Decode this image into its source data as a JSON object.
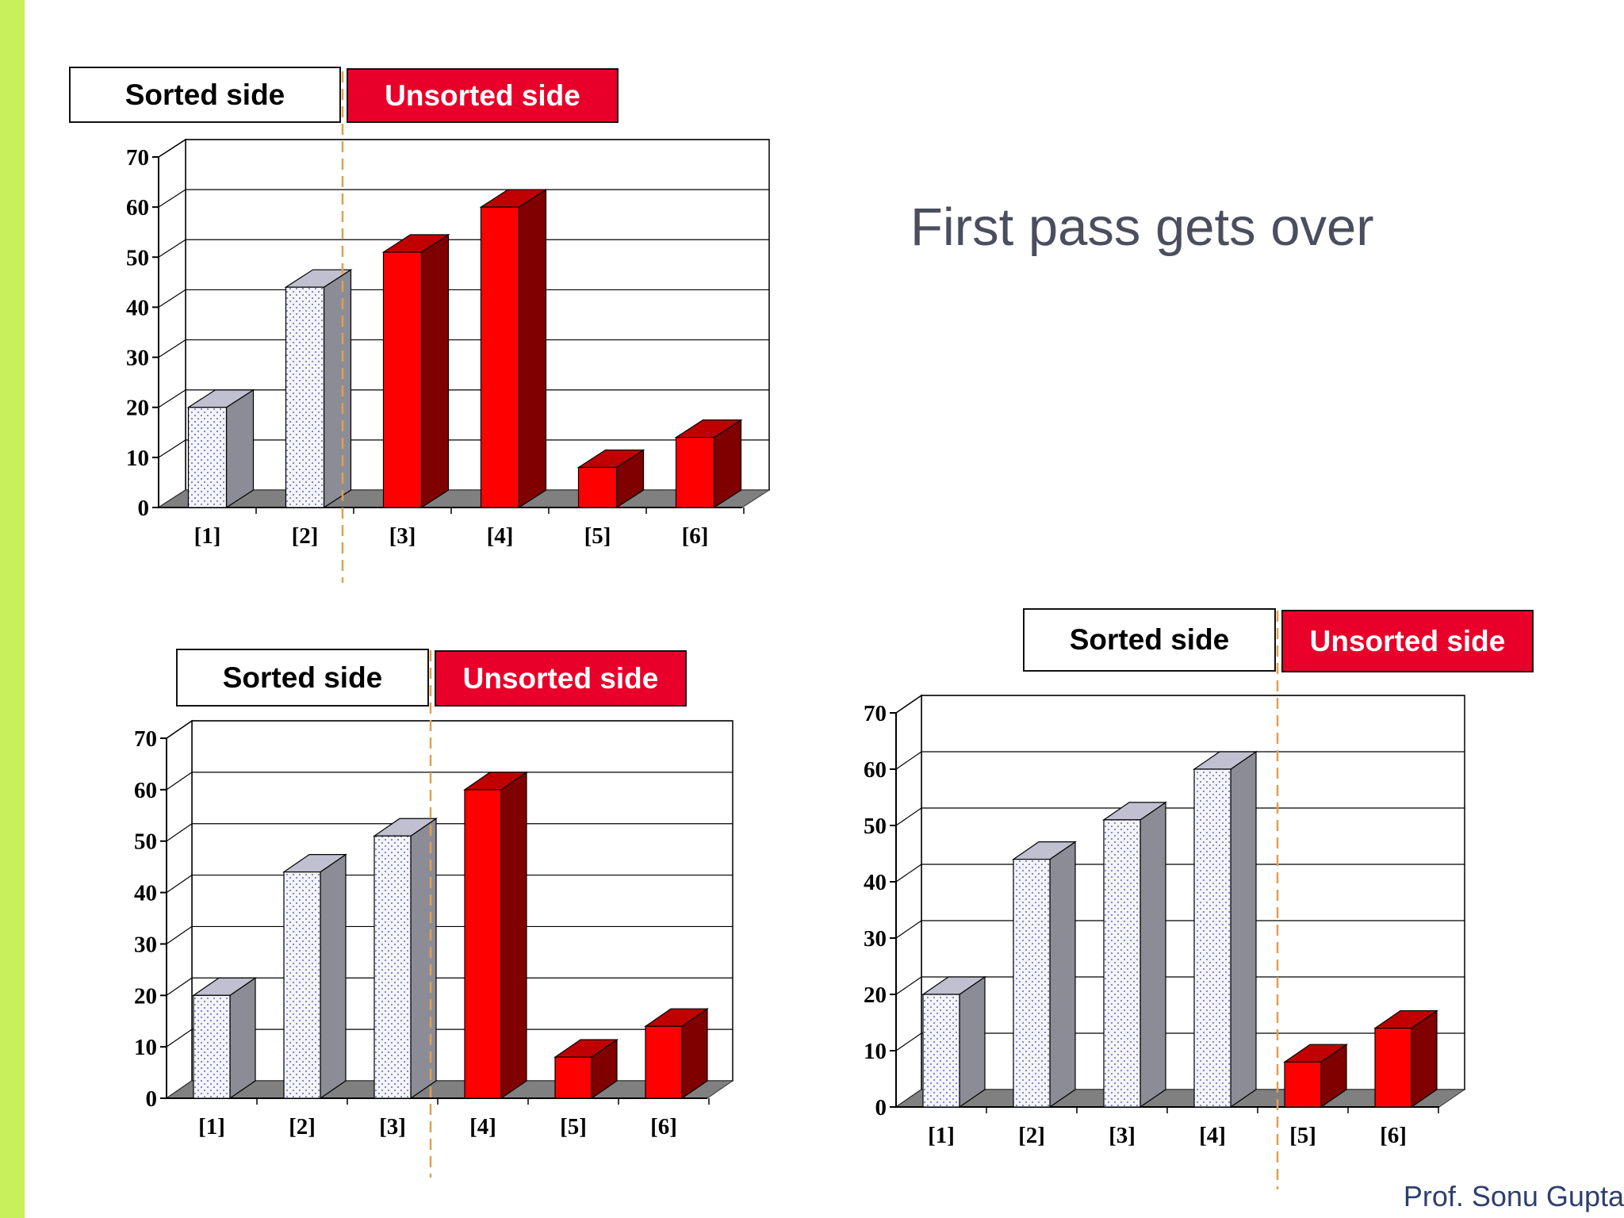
{
  "slide": {
    "title": "First pass gets over",
    "credit": "Prof. Sonu Gupta"
  },
  "colors": {
    "accent_bar": "#c8f05a",
    "unsorted_fill": "#ff0000",
    "unsorted_side": "#800000",
    "unsorted_top": "#c00000",
    "sorted_fill": "#f4f4fb",
    "sorted_side": "#8c8c96",
    "sorted_top": "#c0c0d0",
    "floor": "#808080",
    "divider": "#e0a050",
    "label_unsorted_bg": "#e8002a"
  },
  "charts": [
    {
      "sorted_label": "Sorted side",
      "unsorted_label": "Unsorted side"
    },
    {
      "sorted_label": "Sorted side",
      "unsorted_label": "Unsorted side"
    },
    {
      "sorted_label": "Sorted side",
      "unsorted_label": "Unsorted side"
    }
  ],
  "chart_data": [
    {
      "type": "bar",
      "categories": [
        "[1]",
        "[2]",
        "[3]",
        "[4]",
        "[5]",
        "[6]"
      ],
      "values": [
        20,
        44,
        51,
        60,
        8,
        14
      ],
      "sorted_count": 2,
      "ylim": [
        0,
        70
      ],
      "yticks": [
        "0",
        "10",
        "20",
        "30",
        "40",
        "50",
        "60",
        "70"
      ],
      "grid": true,
      "three_d": true
    },
    {
      "type": "bar",
      "categories": [
        "[1]",
        "[2]",
        "[3]",
        "[4]",
        "[5]",
        "[6]"
      ],
      "values": [
        20,
        44,
        51,
        60,
        8,
        14
      ],
      "sorted_count": 3,
      "ylim": [
        0,
        70
      ],
      "yticks": [
        "0",
        "10",
        "20",
        "30",
        "40",
        "50",
        "60",
        "70"
      ],
      "grid": true,
      "three_d": true
    },
    {
      "type": "bar",
      "categories": [
        "[1]",
        "[2]",
        "[3]",
        "[4]",
        "[5]",
        "[6]"
      ],
      "values": [
        20,
        44,
        51,
        60,
        8,
        14
      ],
      "sorted_count": 4,
      "ylim": [
        0,
        70
      ],
      "yticks": [
        "0",
        "10",
        "20",
        "30",
        "40",
        "50",
        "60",
        "70"
      ],
      "grid": true,
      "three_d": true
    }
  ]
}
